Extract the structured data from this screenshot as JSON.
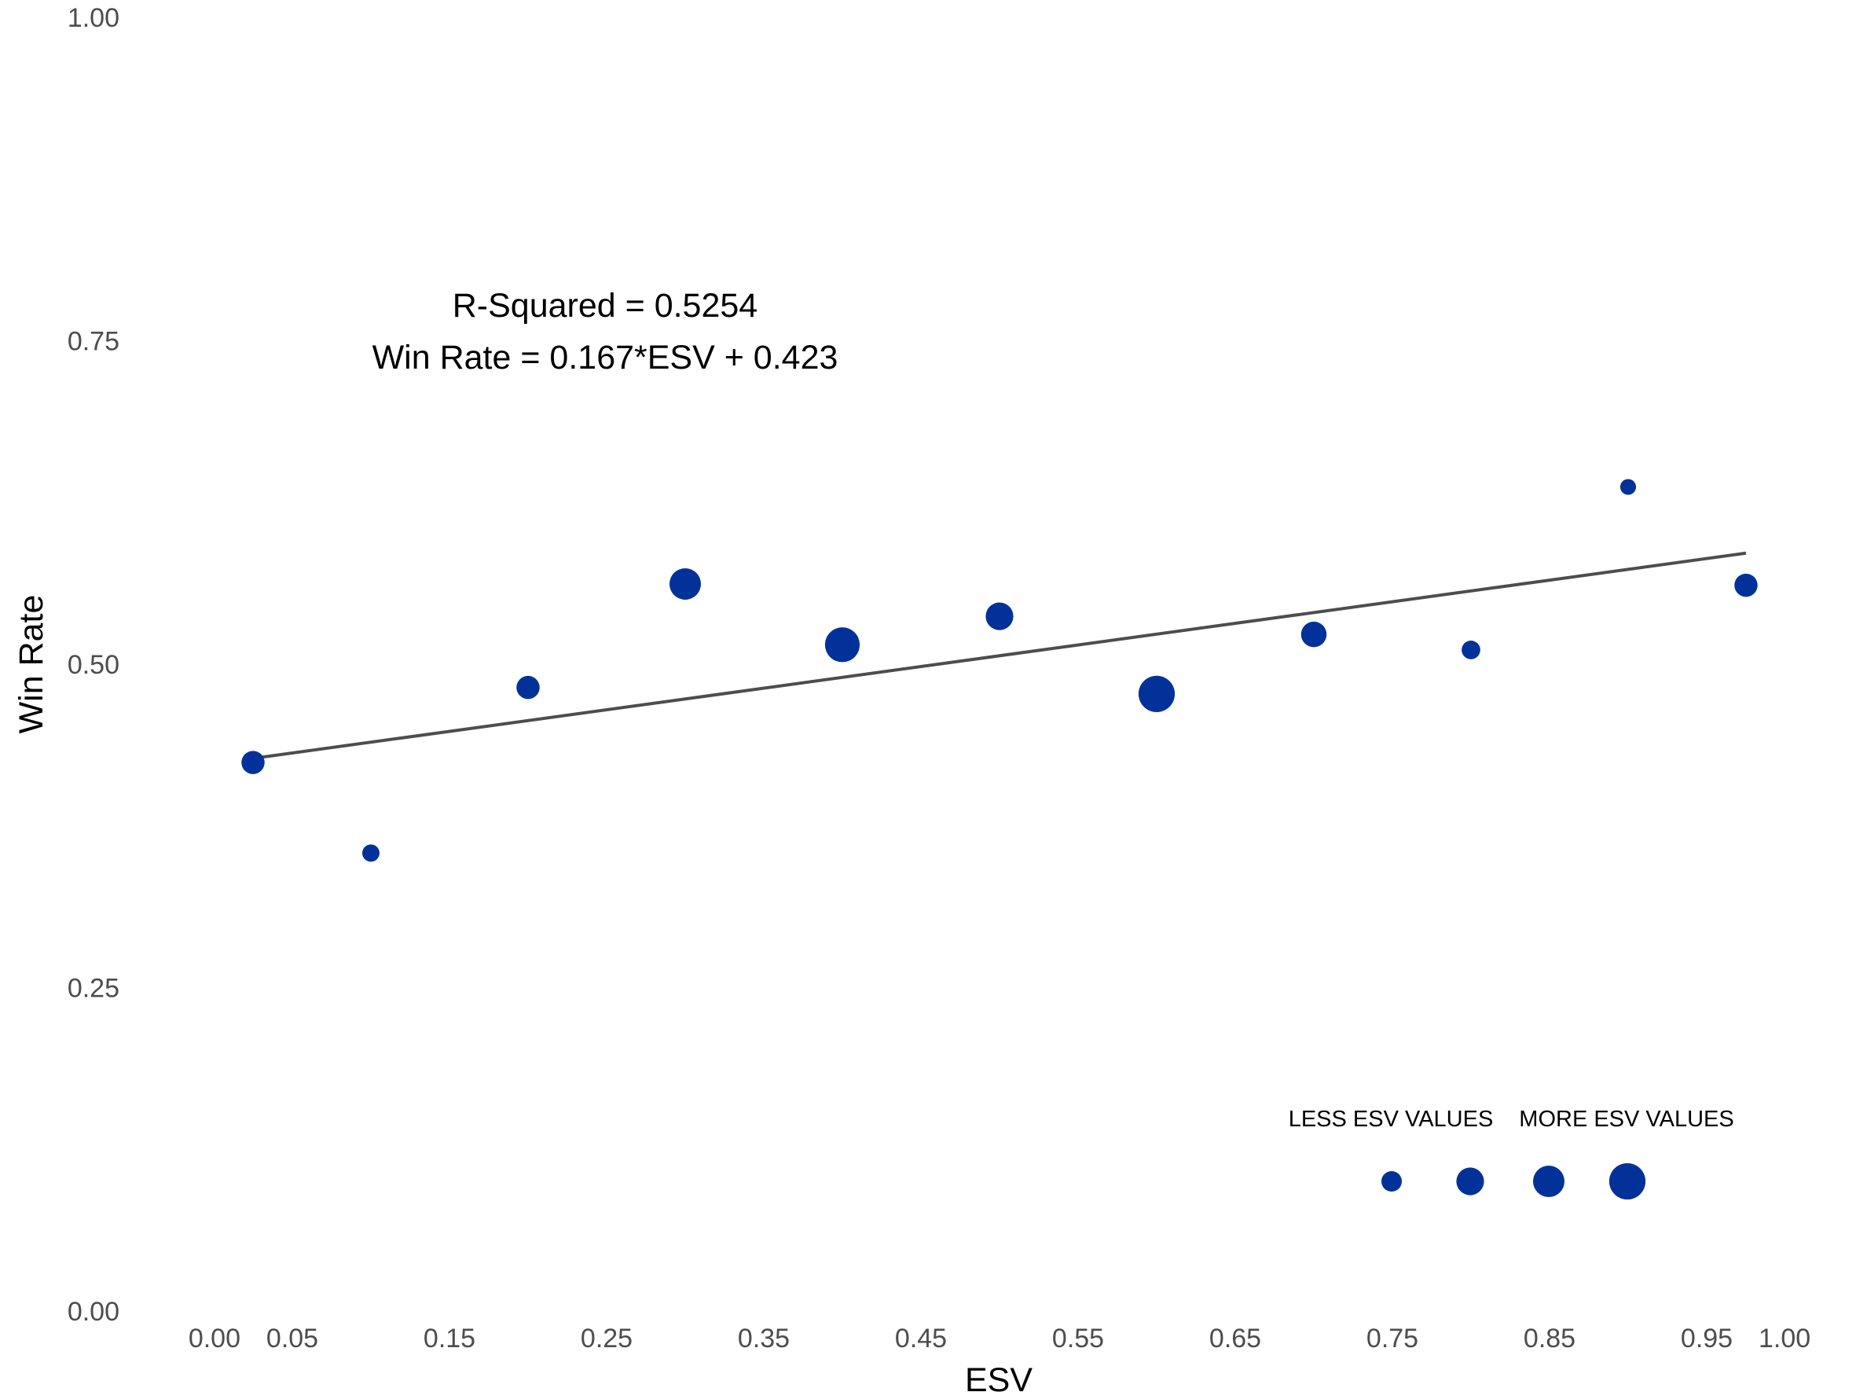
{
  "chart_data": {
    "type": "scatter",
    "xlabel": "ESV",
    "ylabel": "Win Rate",
    "xlim": [
      0,
      1
    ],
    "ylim": [
      0,
      1
    ],
    "x_ticks": [
      "0.00",
      "0.05",
      "0.15",
      "0.25",
      "0.35",
      "0.45",
      "0.55",
      "0.65",
      "0.75",
      "0.85",
      "0.95",
      "1.00"
    ],
    "y_ticks": [
      "0.00",
      "0.25",
      "0.50",
      "0.75",
      "1.00"
    ],
    "grid": false,
    "point_color": "#023299",
    "line_color": "#4d4d4d",
    "points": [
      {
        "x": 0.025,
        "y": 0.424,
        "size": 2
      },
      {
        "x": 0.1,
        "y": 0.354,
        "size": 1
      },
      {
        "x": 0.2,
        "y": 0.482,
        "size": 2
      },
      {
        "x": 0.3,
        "y": 0.562,
        "size": 4
      },
      {
        "x": 0.4,
        "y": 0.515,
        "size": 5
      },
      {
        "x": 0.5,
        "y": 0.537,
        "size": 3
      },
      {
        "x": 0.6,
        "y": 0.477,
        "size": 5.5
      },
      {
        "x": 0.7,
        "y": 0.523,
        "size": 2.5
      },
      {
        "x": 0.8,
        "y": 0.511,
        "size": 1.2
      },
      {
        "x": 0.9,
        "y": 0.637,
        "size": 0.8
      },
      {
        "x": 0.975,
        "y": 0.561,
        "size": 2
      }
    ],
    "regression": {
      "slope": 0.167,
      "intercept": 0.423,
      "x_range": [
        0.025,
        0.975
      ],
      "r_squared_label": "R-Squared = 0.5254",
      "equation_label": "Win Rate = 0.167*ESV  + 0.423"
    },
    "size_legend": {
      "labels": [
        "LESS ESV VALUES",
        "MORE ESV VALUES"
      ],
      "position": "bottom-right",
      "sizes": [
        1.5,
        3,
        4,
        5.5
      ]
    }
  }
}
